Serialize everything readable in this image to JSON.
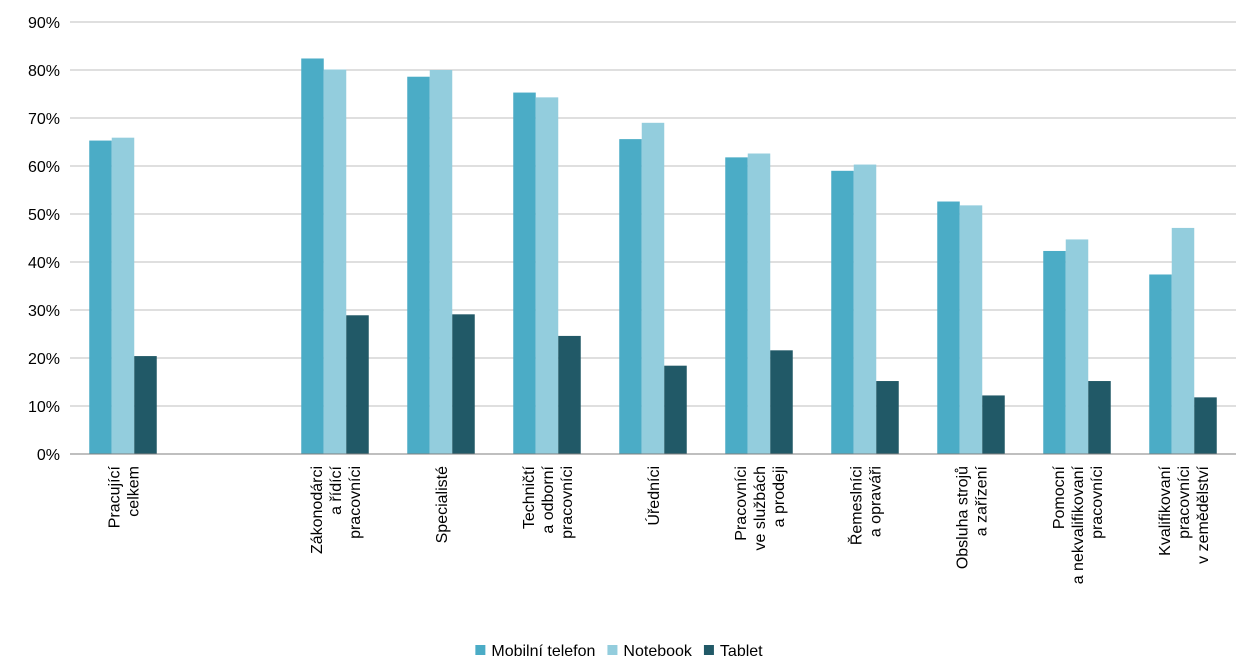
{
  "chart_data": {
    "type": "bar",
    "title": "",
    "xlabel": "",
    "ylabel": "",
    "ylim": [
      0,
      90
    ],
    "yticks": [
      "0%",
      "10%",
      "20%",
      "30%",
      "40%",
      "50%",
      "60%",
      "70%",
      "80%",
      "90%"
    ],
    "grid": "horizontal",
    "legend_position": "bottom",
    "categories": [
      [
        "Pracující",
        "celkem"
      ],
      [],
      [
        "Zákonodárci",
        "a řídící",
        "pracovníci"
      ],
      [
        "Specialisté"
      ],
      [
        "Techničtí",
        "a odborní",
        "pracovníci"
      ],
      [
        "Úředníci"
      ],
      [
        "Pracovníci",
        "ve službách",
        "a prodeji"
      ],
      [
        "Řemeslníci",
        "a opraváři"
      ],
      [
        "Obsluha strojů",
        "a zařízení"
      ],
      [
        "Pomocní",
        "a nekvalifikovaní",
        "pracovníci"
      ],
      [
        "Kvalifikovaní",
        "pracovníci",
        "v zemědělství"
      ]
    ],
    "series": [
      {
        "name": "Mobilní telefon",
        "color": "#4BACC6",
        "values": [
          65.3,
          null,
          82.4,
          78.6,
          75.3,
          65.6,
          61.8,
          59.0,
          52.6,
          42.3,
          37.4
        ]
      },
      {
        "name": "Notebook",
        "color": "#93CDDD",
        "values": [
          65.9,
          null,
          80.1,
          80.0,
          74.3,
          69.0,
          62.6,
          60.3,
          51.8,
          44.7,
          47.1
        ]
      },
      {
        "name": "Tablet",
        "color": "#215967",
        "values": [
          20.4,
          null,
          28.9,
          29.1,
          24.6,
          18.4,
          21.6,
          15.2,
          12.2,
          15.2,
          11.8
        ]
      }
    ]
  }
}
